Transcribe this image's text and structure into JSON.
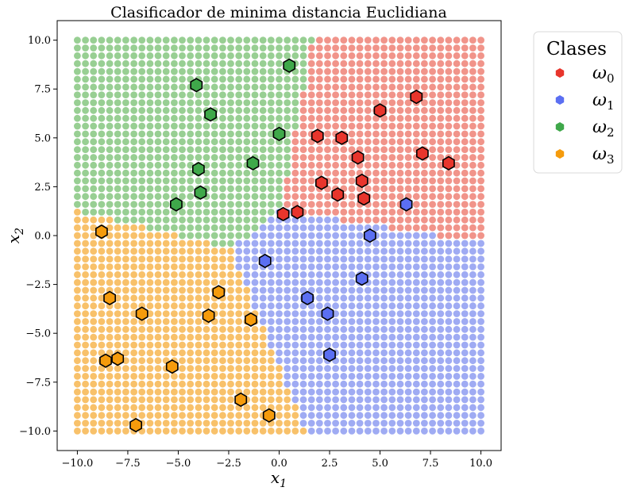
{
  "chart_data": {
    "type": "scatter",
    "title": "Clasificador de minima distancia Euclidiana",
    "xlabel": "x1",
    "ylabel": "x2",
    "xlim": [
      -11,
      11
    ],
    "ylim": [
      -11,
      11
    ],
    "xticks": [
      -10.0,
      -7.5,
      -5.0,
      -2.5,
      0.0,
      2.5,
      5.0,
      7.5,
      10.0
    ],
    "yticks": [
      -10.0,
      -7.5,
      -5.0,
      -2.5,
      0.0,
      2.5,
      5.0,
      7.5,
      10.0
    ],
    "xtick_labels": [
      "−10.0",
      "−7.5",
      "−5.0",
      "−2.5",
      "0.0",
      "2.5",
      "5.0",
      "7.5",
      "10.0"
    ],
    "ytick_labels": [
      "−10.0",
      "−7.5",
      "−5.0",
      "−2.5",
      "0.0",
      "2.5",
      "5.0",
      "7.5",
      "10.0"
    ],
    "grid": false,
    "legend": {
      "title": "Clases",
      "placement": "outside-right"
    },
    "background_grid": {
      "range": [
        -10,
        10
      ],
      "step": 0.4
    },
    "series": [
      {
        "name": "ω0",
        "color": "#e8352c",
        "region_color": "#f1948a",
        "x": [
          0.2,
          0.9,
          1.9,
          2.1,
          2.9,
          3.1,
          3.9,
          4.1,
          4.2,
          5.0,
          6.8,
          7.1,
          8.4
        ],
        "y": [
          1.1,
          1.2,
          5.1,
          2.7,
          2.1,
          5.0,
          4.0,
          2.8,
          1.9,
          6.4,
          7.1,
          4.2,
          3.7
        ]
      },
      {
        "name": "ω1",
        "color": "#5b6ff2",
        "region_color": "#9fabf3",
        "x": [
          -0.7,
          1.4,
          2.4,
          2.5,
          4.1,
          4.5,
          6.3
        ],
        "y": [
          -1.3,
          -3.2,
          -4.0,
          -6.1,
          -2.2,
          0.0,
          1.6
        ]
      },
      {
        "name": "ω2",
        "color": "#3fa84a",
        "region_color": "#98cf93",
        "x": [
          -5.1,
          -4.1,
          -4.0,
          -3.9,
          -3.4,
          -1.3,
          0.0,
          0.5
        ],
        "y": [
          1.6,
          7.7,
          3.4,
          2.2,
          6.2,
          3.7,
          5.2,
          8.7
        ]
      },
      {
        "name": "ω3",
        "color": "#f59b0c",
        "region_color": "#f8c16a",
        "x": [
          -8.8,
          -8.6,
          -8.4,
          -8.0,
          -7.1,
          -6.8,
          -5.3,
          -3.5,
          -3.0,
          -1.4,
          -1.9,
          -0.5
        ],
        "y": [
          0.2,
          -6.4,
          -3.2,
          -6.3,
          -9.7,
          -4.0,
          -6.7,
          -4.1,
          -2.9,
          -4.3,
          -8.4,
          -9.2
        ]
      }
    ]
  }
}
